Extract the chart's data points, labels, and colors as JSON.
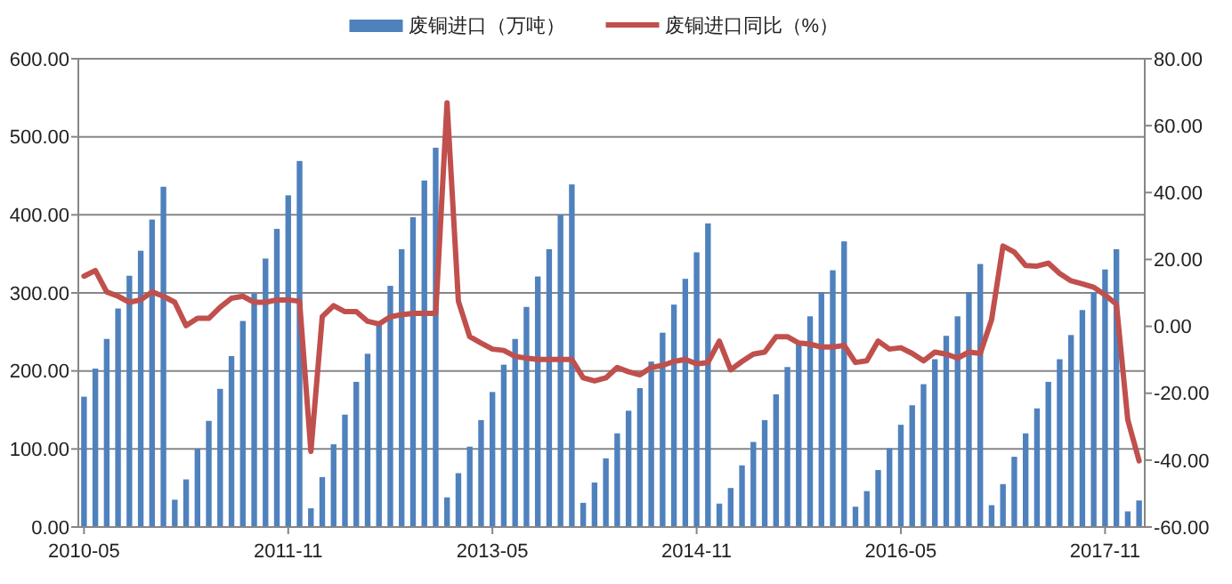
{
  "chart_data": {
    "type": "bar",
    "categories": [
      "2010-05",
      null,
      null,
      null,
      null,
      null,
      null,
      null,
      null,
      null,
      null,
      null,
      null,
      null,
      null,
      null,
      null,
      null,
      "2011-11",
      null,
      null,
      null,
      null,
      null,
      null,
      null,
      null,
      null,
      null,
      null,
      null,
      null,
      null,
      null,
      null,
      null,
      "2013-05",
      null,
      null,
      null,
      null,
      null,
      null,
      null,
      null,
      null,
      null,
      null,
      null,
      null,
      null,
      null,
      null,
      null,
      "2014-11",
      null,
      null,
      null,
      null,
      null,
      null,
      null,
      null,
      null,
      null,
      null,
      null,
      null,
      null,
      null,
      null,
      null,
      "2016-05",
      null,
      null,
      null,
      null,
      null,
      null,
      null,
      null,
      null,
      null,
      null,
      null,
      null,
      null,
      null,
      null,
      null,
      "2017-11",
      null,
      null,
      null
    ],
    "series": [
      {
        "name": "废铜进口（万吨）",
        "color": "#4f81bd",
        "values": [
          167,
          203,
          241,
          280,
          322,
          354,
          394,
          436,
          35,
          61,
          100,
          136,
          177,
          219,
          264,
          299,
          344,
          382,
          425,
          469,
          24,
          64,
          106,
          144,
          186,
          222,
          262,
          309,
          356,
          397,
          444,
          486,
          38,
          69,
          103,
          137,
          173,
          208,
          241,
          282,
          321,
          356,
          400,
          439,
          31,
          57,
          88,
          120,
          149,
          178,
          212,
          249,
          285,
          318,
          352,
          389,
          30,
          50,
          79,
          109,
          137,
          170,
          205,
          238,
          270,
          301,
          329,
          366,
          26,
          46,
          73,
          101,
          131,
          156,
          183,
          215,
          245,
          270,
          301,
          337,
          28,
          55,
          90,
          120,
          152,
          186,
          215,
          246,
          278,
          301,
          330,
          356,
          20,
          34
        ]
      },
      {
        "name": "废铜进口同比（%）",
        "type": "line",
        "axis": "y2",
        "color": "#c0504d",
        "values": [
          15,
          16.7,
          10.3,
          9,
          7.2,
          7.9,
          10.3,
          9,
          7.2,
          0.2,
          2.4,
          2.4,
          5.7,
          8.4,
          9,
          7.2,
          7.2,
          7.9,
          7.9,
          7.5,
          -37.4,
          2.9,
          6.2,
          4.4,
          4.4,
          1.5,
          0.7,
          2.9,
          3.5,
          3.9,
          3.9,
          3.9,
          66.8,
          7.5,
          -3.1,
          -5,
          -6.8,
          -7.2,
          -9,
          -9.5,
          -9.9,
          -9.9,
          -9.9,
          -9.9,
          -15.4,
          -16.3,
          -15.4,
          -12.3,
          -13.6,
          -14.5,
          -12.3,
          -11.7,
          -10.5,
          -9.9,
          -11.2,
          -10.8,
          -4.4,
          -13,
          -10.5,
          -8.3,
          -7.7,
          -3.1,
          -3.1,
          -5,
          -5.3,
          -6.2,
          -6.2,
          -5.7,
          -10.8,
          -10.3,
          -4.4,
          -6.8,
          -6.4,
          -8.1,
          -10.3,
          -7.7,
          -8.3,
          -9.5,
          -7.7,
          -8.1,
          2,
          24,
          22.2,
          18.2,
          18,
          18.9,
          15.8,
          13.6,
          12.7,
          11.7,
          9.4,
          6.6,
          -27.9,
          -40.2
        ]
      }
    ],
    "ylim": [
      0,
      600
    ],
    "yticks": [
      {
        "value": 0,
        "label": "0.00"
      },
      {
        "value": 100,
        "label": "100.00"
      },
      {
        "value": 200,
        "label": "200.00"
      },
      {
        "value": 300,
        "label": "300.00"
      },
      {
        "value": 400,
        "label": "400.00"
      },
      {
        "value": 500,
        "label": "500.00"
      },
      {
        "value": 600,
        "label": "600.00"
      }
    ],
    "y2lim": [
      -60,
      80
    ],
    "y2ticks": [
      {
        "value": -60,
        "label": "-60.00"
      },
      {
        "value": -40,
        "label": "-40.00"
      },
      {
        "value": -20,
        "label": "-20.00"
      },
      {
        "value": 0,
        "label": "0.00"
      },
      {
        "value": 20,
        "label": "20.00"
      },
      {
        "value": 40,
        "label": "40.00"
      },
      {
        "value": 60,
        "label": "60.00"
      },
      {
        "value": 80,
        "label": "80.00"
      }
    ],
    "grid": "y",
    "legend": "top",
    "marker": "none",
    "line_style": "solid"
  }
}
